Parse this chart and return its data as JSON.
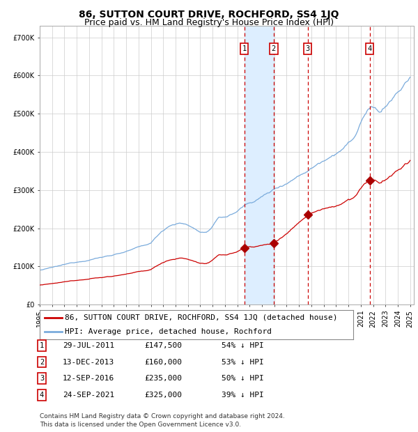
{
  "title": "86, SUTTON COURT DRIVE, ROCHFORD, SS4 1JQ",
  "subtitle": "Price paid vs. HM Land Registry's House Price Index (HPI)",
  "ylim": [
    0,
    730000
  ],
  "yticks": [
    0,
    100000,
    200000,
    300000,
    400000,
    500000,
    600000,
    700000
  ],
  "ytick_labels": [
    "£0",
    "£100K",
    "£200K",
    "£300K",
    "£400K",
    "£500K",
    "£600K",
    "£700K"
  ],
  "year_start": 1995,
  "year_end": 2025,
  "background_color": "#ffffff",
  "plot_bg_color": "#ffffff",
  "grid_color": "#cccccc",
  "hpi_color": "#7aabdc",
  "price_color": "#cc0000",
  "sale_marker_color": "#aa0000",
  "dashed_line_color": "#cc0000",
  "shade_color": "#ddeeff",
  "transactions": [
    {
      "date": 2011.57,
      "price": 147500,
      "label": "1"
    },
    {
      "date": 2013.95,
      "price": 160000,
      "label": "2"
    },
    {
      "date": 2016.7,
      "price": 235000,
      "label": "3"
    },
    {
      "date": 2021.73,
      "price": 325000,
      "label": "4"
    }
  ],
  "legend_property_label": "86, SUTTON COURT DRIVE, ROCHFORD, SS4 1JQ (detached house)",
  "legend_hpi_label": "HPI: Average price, detached house, Rochford",
  "table_rows": [
    {
      "num": "1",
      "date": "29-JUL-2011",
      "price": "£147,500",
      "pct": "54% ↓ HPI"
    },
    {
      "num": "2",
      "date": "13-DEC-2013",
      "price": "£160,000",
      "pct": "53% ↓ HPI"
    },
    {
      "num": "3",
      "date": "12-SEP-2016",
      "price": "£235,000",
      "pct": "50% ↓ HPI"
    },
    {
      "num": "4",
      "date": "24-SEP-2021",
      "price": "£325,000",
      "pct": "39% ↓ HPI"
    }
  ],
  "footnote": "Contains HM Land Registry data © Crown copyright and database right 2024.\nThis data is licensed under the Open Government Licence v3.0.",
  "title_fontsize": 10,
  "subtitle_fontsize": 9,
  "tick_fontsize": 7,
  "legend_fontsize": 8,
  "table_fontsize": 8,
  "footnote_fontsize": 6.5
}
